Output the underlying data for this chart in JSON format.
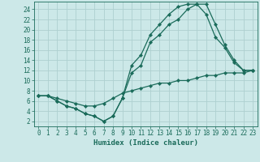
{
  "xlabel": "Humidex (Indice chaleur)",
  "xlim": [
    -0.5,
    23.5
  ],
  "ylim": [
    1,
    25.5
  ],
  "bg_color": "#cce8e8",
  "grid_color": "#aed0d0",
  "line_color": "#1a6b5a",
  "curve1_x": [
    0,
    1,
    2,
    3,
    4,
    5,
    6,
    7,
    8,
    9,
    10,
    11,
    12,
    13,
    14,
    15,
    16,
    17,
    18,
    19,
    20,
    21,
    22,
    23
  ],
  "curve1_y": [
    7,
    7,
    6,
    5,
    4.5,
    3.5,
    3,
    2,
    3,
    6.5,
    11.5,
    13,
    17.5,
    19,
    21,
    22,
    24,
    25,
    25,
    21,
    17,
    14,
    12,
    12
  ],
  "curve2_x": [
    0,
    1,
    2,
    3,
    4,
    5,
    6,
    7,
    8,
    9,
    10,
    11,
    12,
    13,
    14,
    15,
    16,
    17,
    18,
    19,
    20,
    21,
    22,
    23
  ],
  "curve2_y": [
    7,
    7,
    6,
    5,
    4.5,
    3.5,
    3,
    2,
    3,
    6.5,
    13,
    15,
    19,
    21,
    23,
    24.5,
    25,
    25,
    23,
    18.5,
    16.5,
    13.5,
    12,
    12
  ],
  "curve3_x": [
    0,
    1,
    2,
    3,
    4,
    5,
    6,
    7,
    8,
    9,
    10,
    11,
    12,
    13,
    14,
    15,
    16,
    17,
    18,
    19,
    20,
    21,
    22,
    23
  ],
  "curve3_y": [
    7,
    7,
    6.5,
    6,
    5.5,
    5,
    5,
    5.5,
    6.5,
    7.5,
    8,
    8.5,
    9,
    9.5,
    9.5,
    10,
    10,
    10.5,
    11,
    11,
    11.5,
    11.5,
    11.5,
    12
  ],
  "xticks": [
    0,
    1,
    2,
    3,
    4,
    5,
    6,
    7,
    8,
    9,
    10,
    11,
    12,
    13,
    14,
    15,
    16,
    17,
    18,
    19,
    20,
    21,
    22,
    23
  ],
  "yticks": [
    2,
    4,
    6,
    8,
    10,
    12,
    14,
    16,
    18,
    20,
    22,
    24
  ],
  "tick_fontsize": 5.5,
  "xlabel_fontsize": 6.5
}
